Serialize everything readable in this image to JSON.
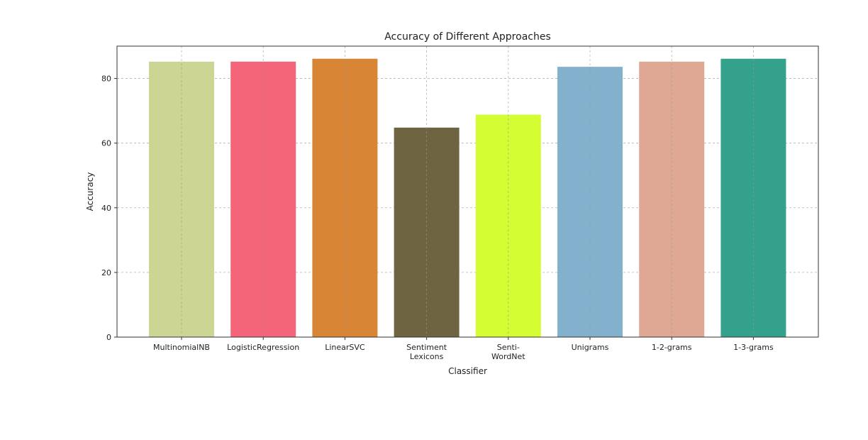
{
  "chart_data": {
    "type": "bar",
    "title": "Accuracy of Different Approaches",
    "xlabel": "Classifier",
    "ylabel": "Accuracy",
    "ylim": [
      0,
      90
    ],
    "yticks": [
      "0",
      "20",
      "40",
      "60",
      "80"
    ],
    "grid": true,
    "categories": [
      "MultinomialNB",
      "LogisticRegression",
      "LinearSVC",
      "Sentiment\nLexicons",
      "Senti-\nWordNet",
      "Unigrams",
      "1-2-grams",
      "1-3-grams"
    ],
    "values": [
      85.2,
      85.2,
      86.1,
      64.8,
      68.8,
      83.6,
      85.2,
      86.1
    ],
    "colors": [
      "#cdd595",
      "#f4657a",
      "#d98536",
      "#6e6442",
      "#d4fd33",
      "#82b0cd",
      "#dea894",
      "#34a18c"
    ]
  }
}
